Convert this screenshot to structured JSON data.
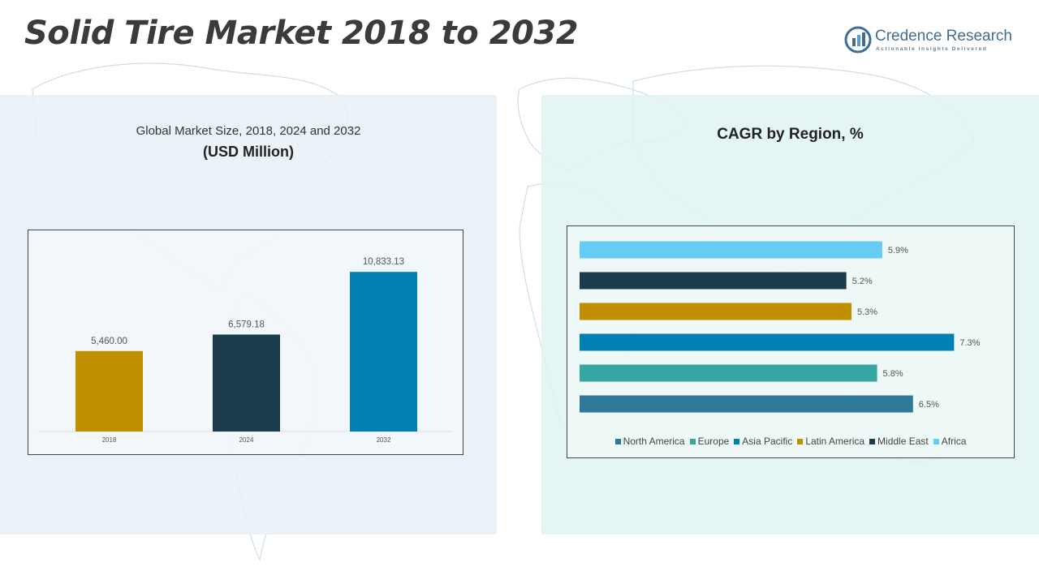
{
  "header": {
    "title": "Solid Tire Market 2018 to 2032",
    "logo": {
      "name": "Credence Research",
      "tagline": "Actionable Insights Delivered"
    }
  },
  "left_panel": {
    "subtitle": "Global Market Size, 2018, 2024 and 2032",
    "unit": "(USD Million)"
  },
  "right_panel": {
    "title": "CAGR by Region, %"
  },
  "chart_data": [
    {
      "type": "bar",
      "title": "Global Market Size, 2018, 2024 and 2032",
      "ylabel": "(USD Million)",
      "categories": [
        "2018",
        "2024",
        "2032"
      ],
      "values": [
        5460.0,
        6579.18,
        10833.13
      ],
      "data_labels": [
        "5,460.00",
        "6,579.18",
        "10,833.13"
      ],
      "colors": [
        "#BF8F00",
        "#1B3A4B",
        "#0080B4"
      ],
      "ylim": [
        0,
        12000
      ],
      "grid": false
    },
    {
      "type": "bar",
      "orientation": "horizontal",
      "title": "CAGR by Region, %",
      "categories": [
        "North America",
        "Europe",
        "Asia Pacific",
        "Latin America",
        "Middle East",
        "Africa"
      ],
      "values": [
        6.5,
        5.8,
        7.3,
        5.3,
        5.2,
        5.9
      ],
      "data_labels": [
        "6.5%",
        "5.8%",
        "7.3%",
        "5.3%",
        "5.2%",
        "5.9%"
      ],
      "colors": [
        "#2E7899",
        "#36A6A0",
        "#0080B4",
        "#BF8F00",
        "#1B3A4B",
        "#66CCF5"
      ],
      "xlim": [
        0,
        7.5
      ],
      "legend": "bottom",
      "grid": false
    }
  ]
}
